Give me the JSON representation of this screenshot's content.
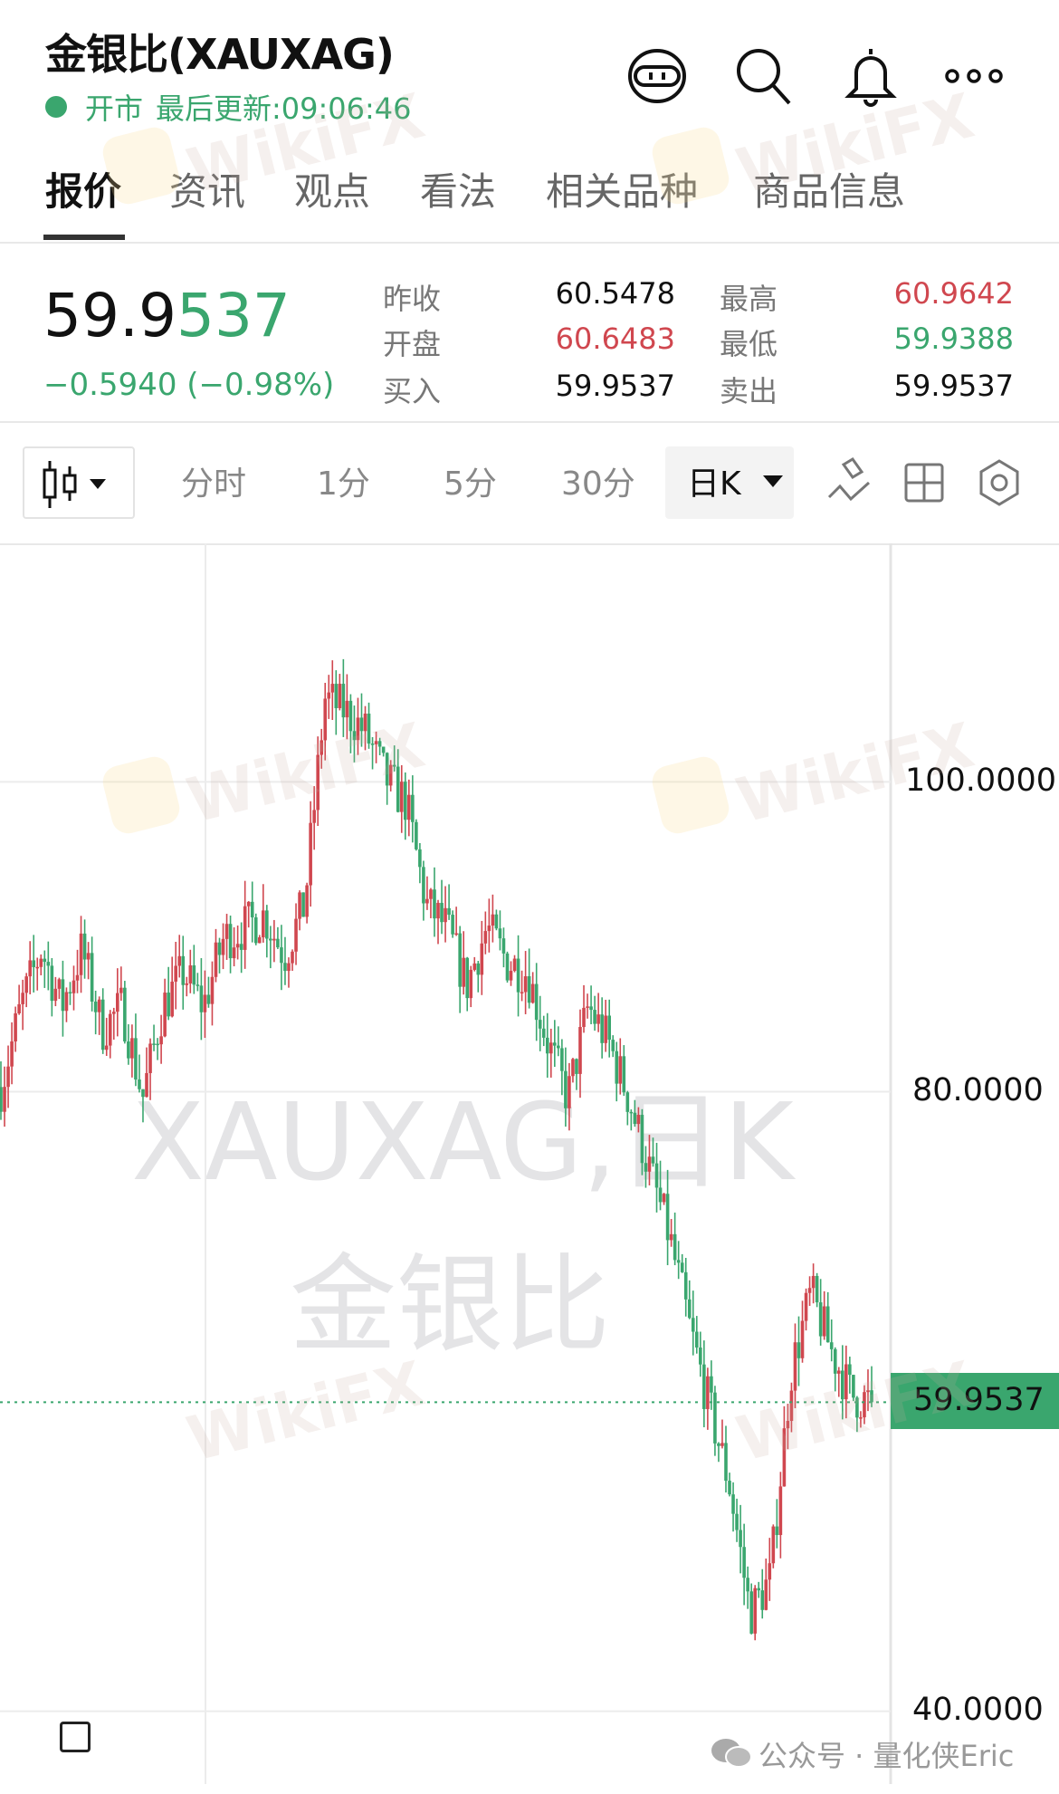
{
  "header": {
    "title": "金银比(XAUXAG)",
    "market_status": "开市",
    "last_update": "最后更新:09:06:46",
    "icons": [
      "robot-icon",
      "search-icon",
      "bell-icon",
      "more-icon"
    ]
  },
  "tabs": [
    {
      "label": "报价",
      "active": true
    },
    {
      "label": "资讯"
    },
    {
      "label": "观点"
    },
    {
      "label": "看法"
    },
    {
      "label": "相关品种"
    },
    {
      "label": "商品信息"
    }
  ],
  "quote": {
    "price_main": "59.9",
    "price_tail": "537",
    "change": "−0.5940 (−0.98%)",
    "fields": [
      {
        "label": "昨收",
        "value": "60.5478",
        "color": "#111111"
      },
      {
        "label": "开盘",
        "value": "60.6483",
        "color": "#d0474f"
      },
      {
        "label": "买入",
        "value": "59.9537",
        "color": "#111111"
      },
      {
        "label": "最高",
        "value": "60.9642",
        "color": "#d0474f"
      },
      {
        "label": "最低",
        "value": "59.9388",
        "color": "#3aa66e"
      },
      {
        "label": "卖出",
        "value": "59.9537",
        "color": "#111111"
      }
    ]
  },
  "toolbar": {
    "chart_type_icon": "candlestick-icon",
    "periods": [
      "分时",
      "1分",
      "5分",
      "30分"
    ],
    "selected_period": "日K",
    "tools": [
      "draw-icon",
      "layout-grid-icon",
      "settings-hexagon-icon"
    ]
  },
  "colors": {
    "up": "#d0474f",
    "down": "#3aa66e",
    "accent": "#3aa66e"
  },
  "chart_data": {
    "type": "candlestick",
    "watermark_symbol": "XAUXAG,日K",
    "watermark_name": "金银比",
    "y_ticks": [
      "100.0000",
      "80.0000",
      "40.0000"
    ],
    "y_tick_values": [
      100,
      80,
      40
    ],
    "last_price_label": "59.9537",
    "last_price": 59.9537,
    "ylim": [
      35.3,
      115.4
    ],
    "grid": true,
    "approx_close_path": [
      80.3,
      85.5,
      89.2,
      85.5,
      89.2,
      84,
      85.5,
      79.6,
      85.5,
      87.7,
      85.5,
      89.9,
      90.6,
      91.4,
      88.8,
      92.1,
      105.4,
      104.6,
      103.2,
      100.2,
      98.7,
      92.1,
      90.6,
      86.9,
      90.6,
      88.4,
      87.7,
      83.2,
      79.6,
      85.5,
      83.2,
      79.6,
      75.1,
      70.7,
      64.8,
      59.6,
      54.5,
      46.3,
      48.6,
      61.8,
      67,
      63.3,
      60.4,
      59.95
    ]
  },
  "footer": {
    "watermark_credit": "公众号 · 量化侠Eric"
  }
}
